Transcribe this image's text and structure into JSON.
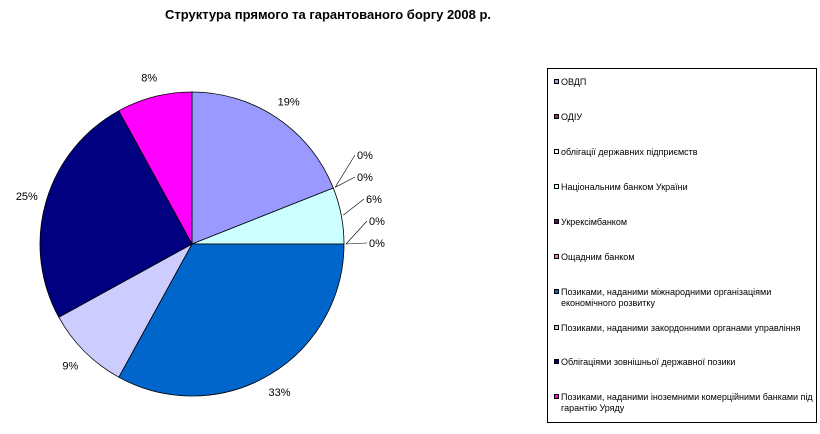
{
  "chart_data": {
    "type": "pie",
    "title": "Структура прямого та гарантованого боргу 2008 р.",
    "legend_position": "right",
    "slices": [
      {
        "label": "ОВДП",
        "value": 19,
        "display": "19%",
        "color": "#9999ff"
      },
      {
        "label": "ОДІУ",
        "value": 0,
        "display": "0%",
        "color": "#993366"
      },
      {
        "label": "облігації державних підприємств",
        "value": 0,
        "display": "0%",
        "color": "#ffffcc"
      },
      {
        "label": "Національним банком України",
        "value": 6,
        "display": "6%",
        "color": "#ccffff"
      },
      {
        "label": "Укрексімбанком",
        "value": 0,
        "display": "0%",
        "color": "#660066"
      },
      {
        "label": "Ощадним банком",
        "value": 0,
        "display": "0%",
        "color": "#ff8080"
      },
      {
        "label": "Позиками, наданими міжнародними організаціями економічного розвитку",
        "value": 33,
        "display": "33%",
        "color": "#0066cc"
      },
      {
        "label": "Позиками, наданими закордонними органами управління",
        "value": 9,
        "display": "9%",
        "color": "#ccccff"
      },
      {
        "label": "Облігаціями зовнішньої державної позики",
        "value": 25,
        "display": "25%",
        "color": "#000080"
      },
      {
        "label": "Позиками, наданими іноземними комерційними банками під гарантію Уряду",
        "value": 8,
        "display": "8%",
        "color": "#ff00ff"
      }
    ]
  }
}
